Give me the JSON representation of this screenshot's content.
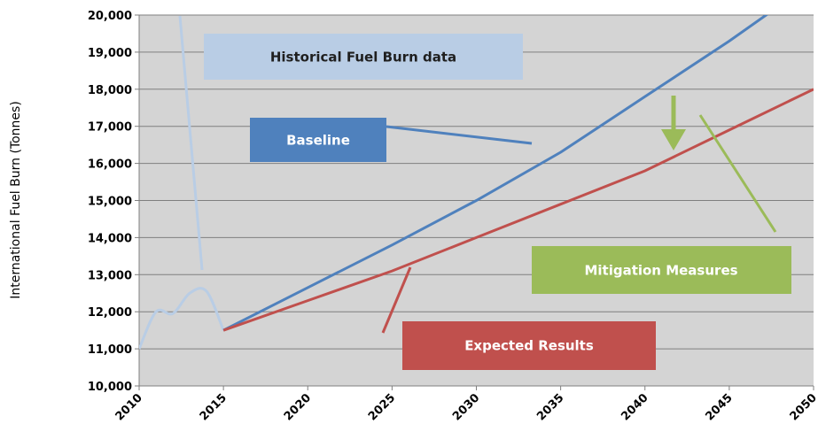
{
  "chart_data": {
    "type": "line",
    "y_label": "International Fuel Burn (Tonnes)",
    "xlim": [
      2010,
      2050
    ],
    "xticks": [
      2010,
      2015,
      2020,
      2025,
      2030,
      2035,
      2040,
      2045,
      2050
    ],
    "ylim": [
      10000,
      20000
    ],
    "yticks": [
      {
        "value": 10000,
        "label": "10,000"
      },
      {
        "value": 11000,
        "label": "11,000"
      },
      {
        "value": 12000,
        "label": "12,000"
      },
      {
        "value": 13000,
        "label": "13,000"
      },
      {
        "value": 14000,
        "label": "14,000"
      },
      {
        "value": 15000,
        "label": "15,000"
      },
      {
        "value": 16000,
        "label": "16,000"
      },
      {
        "value": 17000,
        "label": "17,000"
      },
      {
        "value": 18000,
        "label": "18,000"
      },
      {
        "value": 19000,
        "label": "19,000"
      },
      {
        "value": 20000,
        "label": "20,000"
      }
    ],
    "grid": true,
    "series": [
      {
        "color": "#b9cde5",
        "x": [
          2010,
          2011,
          2012,
          2013,
          2014,
          2015
        ],
        "values": [
          11000,
          12000,
          11950,
          12500,
          12550,
          11500
        ]
      },
      {
        "color": "#4f81bd",
        "x": [
          2015,
          2020,
          2025,
          2030,
          2035,
          2040,
          2045,
          2050
        ],
        "values": [
          11500,
          12650,
          13800,
          15000,
          16300,
          17800,
          19300,
          20900
        ]
      },
      {
        "color": "#c0504d",
        "x": [
          2015,
          2020,
          2025,
          2030,
          2035,
          2040,
          2045,
          2050
        ],
        "values": [
          11500,
          12300,
          13100,
          14000,
          14900,
          15800,
          16900,
          18000
        ]
      }
    ],
    "annotations": [
      "Historical Fuel Burn data",
      "Baseline",
      "Mitigation Measures",
      "Expected Results"
    ]
  }
}
